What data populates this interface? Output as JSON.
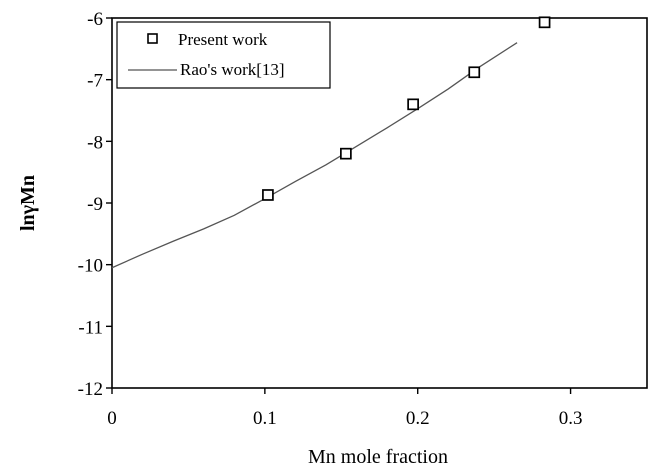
{
  "chart_data": {
    "type": "scatter",
    "xlabel": "Mn mole fraction",
    "ylabel": "lnγMn",
    "xlim": [
      0,
      0.35
    ],
    "ylim": [
      -12,
      -6
    ],
    "x_ticks": [
      "0",
      "0.1",
      "0.2",
      "0.3"
    ],
    "x_tick_values": [
      0,
      0.1,
      0.2,
      0.3
    ],
    "y_ticks": [
      "-6",
      "-7",
      "-8",
      "-9",
      "-10",
      "-11",
      "-12"
    ],
    "y_tick_values": [
      -6,
      -7,
      -8,
      -9,
      -10,
      -11,
      -12
    ],
    "grid": false,
    "legend_position": "top-left",
    "series": [
      {
        "name": "Present work",
        "kind": "scatter",
        "marker": "open-square",
        "color": "#000000",
        "x": [
          0.102,
          0.153,
          0.197,
          0.237,
          0.283
        ],
        "y": [
          -8.87,
          -8.2,
          -7.4,
          -6.88,
          -6.07
        ]
      },
      {
        "name": "Rao's work[13]",
        "kind": "line",
        "color": "#555555",
        "x": [
          0.0,
          0.02,
          0.04,
          0.06,
          0.08,
          0.1,
          0.12,
          0.14,
          0.16,
          0.18,
          0.2,
          0.22,
          0.24,
          0.265
        ],
        "y": [
          -10.05,
          -9.83,
          -9.62,
          -9.42,
          -9.2,
          -8.93,
          -8.65,
          -8.38,
          -8.08,
          -7.78,
          -7.47,
          -7.15,
          -6.8,
          -6.4
        ]
      }
    ]
  }
}
